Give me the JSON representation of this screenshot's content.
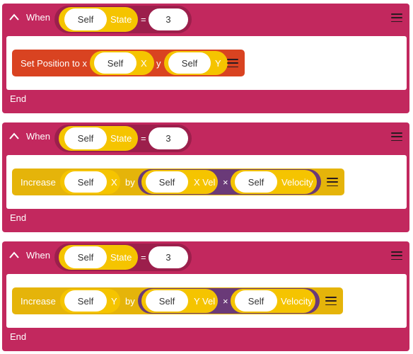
{
  "blocks": [
    {
      "when_label": "When",
      "condition": {
        "object": "Self",
        "property": "State",
        "operator": "=",
        "value": "3"
      },
      "action": {
        "type": "set_position",
        "label": "Set Position to x",
        "x_object": "Self",
        "x_property": "X",
        "y_label": "y",
        "y_object": "Self",
        "y_property": "Y"
      },
      "end_label": "End"
    },
    {
      "when_label": "When",
      "condition": {
        "object": "Self",
        "property": "State",
        "operator": "=",
        "value": "3"
      },
      "action": {
        "type": "increase",
        "label": "Increase",
        "target_object": "Self",
        "target_property": "X",
        "by_label": "by",
        "left_object": "Self",
        "left_property": "X Vel",
        "operator": "×",
        "right_object": "Self",
        "right_property": "Velocity"
      },
      "end_label": "End"
    },
    {
      "when_label": "When",
      "condition": {
        "object": "Self",
        "property": "State",
        "operator": "=",
        "value": "3"
      },
      "action": {
        "type": "increase",
        "label": "Increase",
        "target_object": "Self",
        "target_property": "Y",
        "by_label": "by",
        "left_object": "Self",
        "left_property": "Y Vel",
        "operator": "×",
        "right_object": "Self",
        "right_property": "Velocity"
      },
      "end_label": "End"
    }
  ],
  "colors": {
    "when_block": "#c2285e",
    "condition_wrap": "#9c1f4c",
    "property_pill": "#f5c400",
    "set_position_block": "#d94321",
    "increase_block": "#e5b40a",
    "multiply_pill": "#6a3a78"
  },
  "icons": {
    "collapse": "chevron-up-icon",
    "menu": "hamburger-menu-icon"
  }
}
